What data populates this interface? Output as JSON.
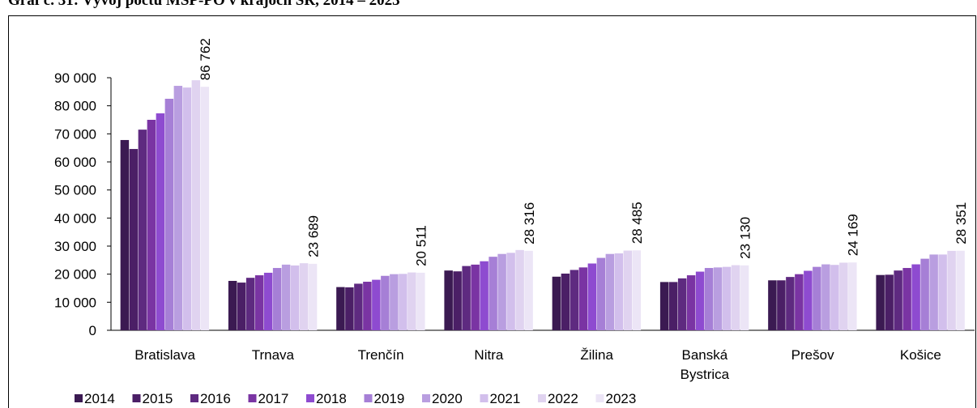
{
  "chart_data": {
    "type": "bar",
    "title": "Graf č. 31: Vývoj počtu MSP-PO v krajoch SR, 2014 – 2023",
    "categories": [
      "Bratislava",
      "Trnava",
      "Trenčín",
      "Nitra",
      "Žilina",
      "Banská Bystrica",
      "Prešov",
      "Košice"
    ],
    "series": [
      {
        "name": "2014",
        "color": "#3b1a52",
        "values": [
          67800,
          17600,
          15400,
          21300,
          19100,
          17200,
          17800,
          19700
        ]
      },
      {
        "name": "2015",
        "color": "#4b1f66",
        "values": [
          64600,
          17000,
          15300,
          21000,
          20200,
          17200,
          17800,
          19800
        ]
      },
      {
        "name": "2016",
        "color": "#5e2a80",
        "values": [
          71500,
          18700,
          16600,
          22900,
          21500,
          18500,
          19000,
          21300
        ]
      },
      {
        "name": "2017",
        "color": "#7a34a3",
        "values": [
          75000,
          19600,
          17300,
          23400,
          22400,
          19600,
          20000,
          22200
        ]
      },
      {
        "name": "2018",
        "color": "#8e4bd0",
        "values": [
          77300,
          20500,
          18000,
          24600,
          23800,
          20900,
          21200,
          23500
        ]
      },
      {
        "name": "2019",
        "color": "#a67fd6",
        "values": [
          82500,
          22200,
          19400,
          26200,
          25800,
          22200,
          22600,
          25500
        ]
      },
      {
        "name": "2020",
        "color": "#b99ee0",
        "values": [
          87100,
          23400,
          20000,
          27200,
          27200,
          22400,
          23500,
          27000
        ]
      },
      {
        "name": "2021",
        "color": "#d2bfec",
        "values": [
          86500,
          23100,
          20100,
          27600,
          27400,
          22600,
          23300,
          27000
        ]
      },
      {
        "name": "2022",
        "color": "#e0d3f0",
        "values": [
          89100,
          23900,
          20600,
          28600,
          28400,
          23200,
          24100,
          28300
        ]
      },
      {
        "name": "2023",
        "color": "#ece5f6",
        "values": [
          86762,
          23689,
          20511,
          28316,
          28485,
          23130,
          24169,
          28351
        ],
        "value_labels": [
          "86 762",
          "23 689",
          "20 511",
          "28 316",
          "28 485",
          "23 130",
          "24 169",
          "28 351"
        ]
      }
    ],
    "ylim": [
      0,
      90000
    ],
    "yticks": [
      0,
      {
        "value": 10000,
        "label": "10 000"
      },
      {
        "value": 20000,
        "label": "20 000"
      },
      {
        "value": 30000,
        "label": "30 000"
      },
      {
        "value": 40000,
        "label": "40 000"
      },
      {
        "value": 50000,
        "label": "50 000"
      },
      {
        "value": 60000,
        "label": "60 000"
      },
      {
        "value": 70000,
        "label": "70 000"
      },
      {
        "value": 80000,
        "label": "80 000"
      },
      {
        "value": 90000,
        "label": "90 000"
      }
    ],
    "legend": "bottom",
    "grid": false
  }
}
